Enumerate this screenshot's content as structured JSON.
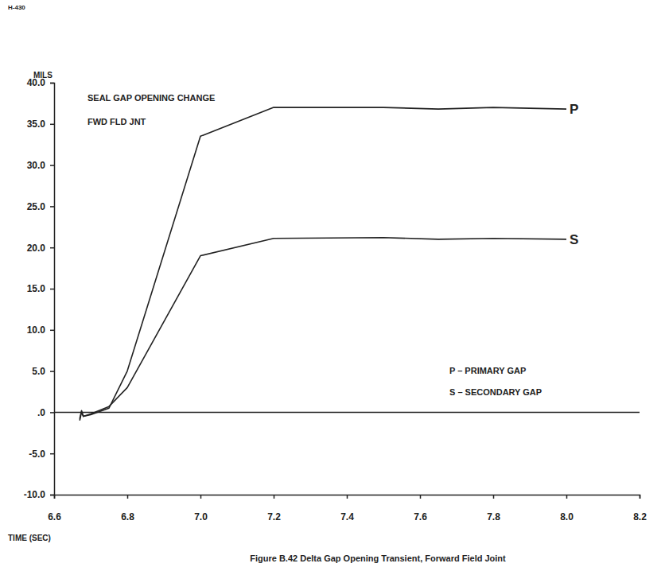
{
  "chart_data": {
    "type": "line",
    "page_label": "H-430",
    "title": "SEAL GAP OPENING CHANGE",
    "subtitle": "FWD FLD JNT",
    "caption": "Figure B.42 Delta Gap Opening Transient, Forward Field Joint",
    "y_label": "MILS",
    "x_label": "TIME (SEC)",
    "notes": [
      "P – PRIMARY GAP",
      "S – SECONDARY GAP"
    ],
    "x": [
      6.67,
      6.675,
      6.68,
      6.7,
      6.75,
      6.8,
      7.0,
      7.2,
      7.5,
      7.65,
      7.8,
      8.0
    ],
    "series": [
      {
        "name": "P",
        "color": "#222222",
        "values": [
          -1.0,
          0.0,
          -0.5,
          -0.3,
          0.5,
          5.0,
          33.5,
          37.0,
          37.0,
          36.8,
          37.0,
          36.8
        ]
      },
      {
        "name": "S",
        "color": "#222222",
        "values": [
          -0.8,
          0.2,
          -0.5,
          -0.2,
          0.7,
          3.0,
          19.0,
          21.1,
          21.2,
          21.0,
          21.1,
          21.0
        ]
      }
    ],
    "hline": 0,
    "xlim": [
      6.6,
      8.2
    ],
    "xticks": [
      6.6,
      6.8,
      {
        "value": 7.0,
        "label": "7.0"
      },
      7.2,
      7.4,
      7.6,
      7.8,
      {
        "value": 8.0,
        "label": "8.0"
      },
      8.2
    ],
    "ylim": [
      -10,
      40
    ],
    "yticks": [
      {
        "value": -10,
        "label": "-10.0"
      },
      {
        "value": -5,
        "label": "-5.0"
      },
      {
        "value": 0,
        "label": ".0"
      },
      {
        "value": 5,
        "label": "5.0"
      },
      {
        "value": 10,
        "label": "10.0"
      },
      {
        "value": 15,
        "label": "15.0"
      },
      {
        "value": 20,
        "label": "20.0"
      },
      {
        "value": 25,
        "label": "25.0"
      },
      {
        "value": 30,
        "label": "30.0"
      },
      {
        "value": 35,
        "label": "35.0"
      },
      {
        "value": 40,
        "label": "40.0"
      }
    ],
    "grid": false
  }
}
